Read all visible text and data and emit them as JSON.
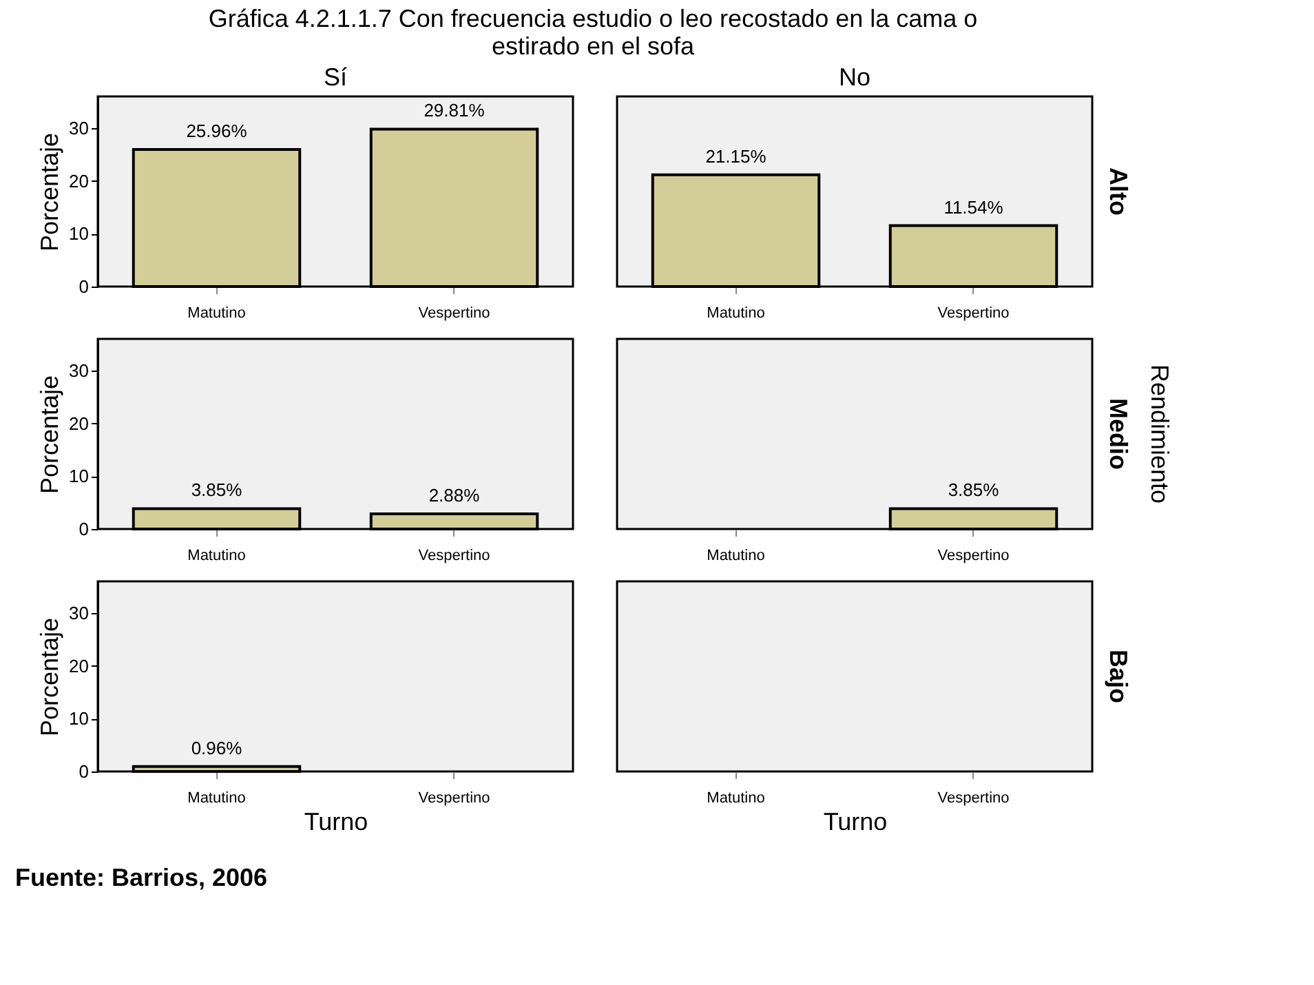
{
  "chart_data": [
    {
      "type": "bar",
      "title": "Gráfica 4.2.1.1.7 Con frecuencia estudio o leo recostado en la cama o\nestirado en el sofa",
      "subtitle": "Sí",
      "ylabel": "Porcentaje",
      "categories": [
        "Matutino",
        "Vespertino"
      ],
      "values": [
        25.96,
        29.81
      ],
      "value_labels": [
        "25.96%",
        "29.81%"
      ],
      "color": "#d3cd98",
      "ylim": [
        0,
        36
      ],
      "yticks": [
        0,
        10,
        20,
        30
      ]
    },
    {
      "type": "bar",
      "subtitle": "No",
      "y2label": "Alto",
      "categories": [
        "Matutino",
        "Vespertino"
      ],
      "values": [
        21.15,
        11.54
      ],
      "value_labels": [
        "21.15%",
        "11.54%"
      ],
      "color": "#d3cd98",
      "ylim": [
        0,
        36
      ],
      "yticks": [
        0,
        10,
        20,
        30
      ],
      "tick_labels": "x"
    },
    {
      "type": "bar",
      "ylabel": "Porcentaje",
      "categories": [
        "Matutino",
        "Vespertino"
      ],
      "values": [
        3.85,
        2.88
      ],
      "value_labels": [
        "3.85%",
        "2.88%"
      ],
      "color": "#d3cd98",
      "ylim": [
        0,
        36
      ],
      "yticks": [
        0,
        10,
        20,
        30
      ]
    },
    {
      "type": "bar",
      "y2label": "Medio",
      "annotations": [
        "Rendimiento"
      ],
      "categories": [
        "Matutino",
        "Vespertino"
      ],
      "values": [
        null,
        3.85
      ],
      "value_labels": [
        null,
        "3.85%"
      ],
      "color": "#d3cd98",
      "ylim": [
        0,
        36
      ],
      "yticks": [
        0,
        10,
        20,
        30
      ],
      "tick_labels": "x"
    },
    {
      "type": "bar",
      "ylabel": "Porcentaje",
      "xlabel": "Turno",
      "annotations": [
        "Fuente: Barrios, 2006"
      ],
      "categories": [
        "Matutino",
        "Vespertino"
      ],
      "values": [
        0.96,
        null
      ],
      "value_labels": [
        "0.96%",
        null
      ],
      "color": "#d3cd98",
      "ylim": [
        0,
        36
      ],
      "yticks": [
        0,
        10,
        20,
        30
      ]
    },
    {
      "type": "bar",
      "y2label": "Bajo",
      "xlabel": "Turno",
      "categories": [
        "Matutino",
        "Vespertino"
      ],
      "values": [
        null,
        null
      ],
      "value_labels": [
        null,
        null
      ],
      "color": "#d3cd98",
      "ylim": [
        0,
        36
      ],
      "yticks": [
        0,
        10,
        20,
        30
      ],
      "tick_labels": "x"
    }
  ]
}
